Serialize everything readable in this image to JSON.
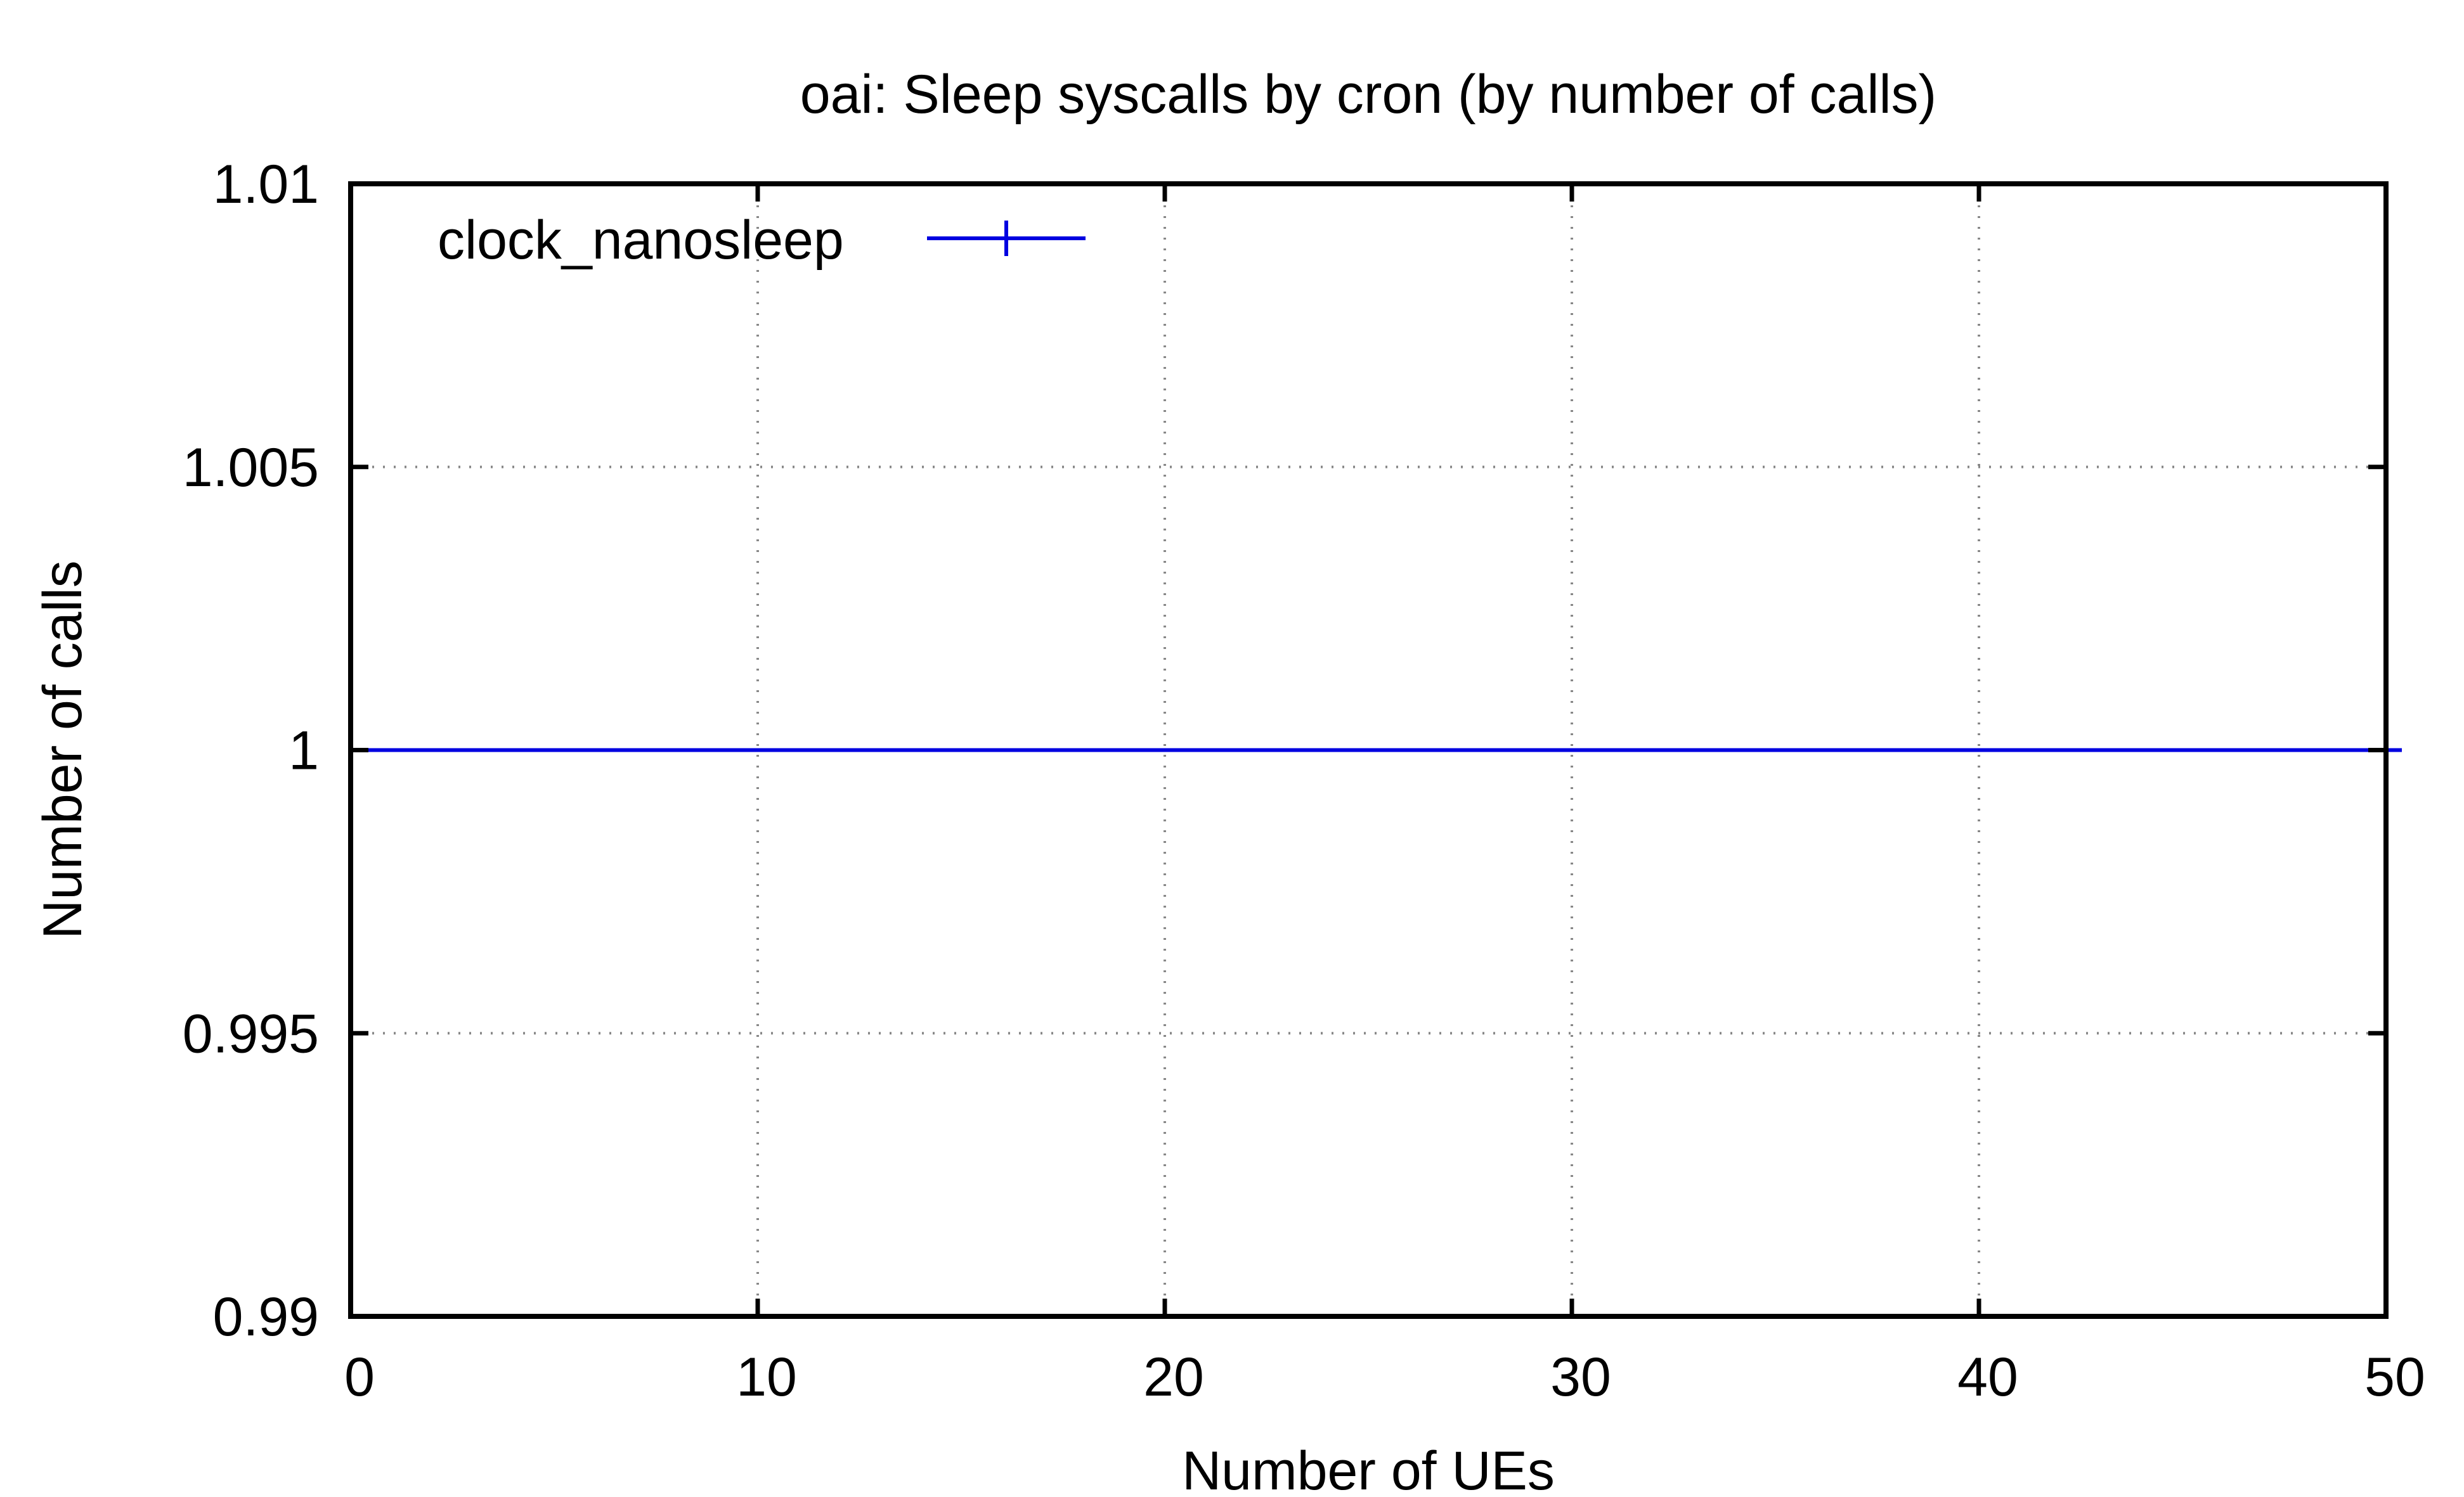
{
  "chart_data": {
    "type": "line",
    "title": "oai: Sleep syscalls by cron (by number of calls)",
    "xlabel": "Number of UEs",
    "ylabel": "Number of calls",
    "xlim": [
      0,
      50
    ],
    "ylim": [
      0.99,
      1.01
    ],
    "x_ticks": [
      "0",
      "10",
      "20",
      "30",
      "40",
      "50"
    ],
    "y_ticks": [
      "0.99",
      "0.995",
      "1",
      "1.005",
      "1.01"
    ],
    "grid": true,
    "legend_position": "top-left",
    "series": [
      {
        "name": "clock_nanosleep",
        "color": "#0000e0",
        "marker": "plus",
        "x": [
          0,
          50
        ],
        "y": [
          1,
          1
        ]
      }
    ]
  }
}
